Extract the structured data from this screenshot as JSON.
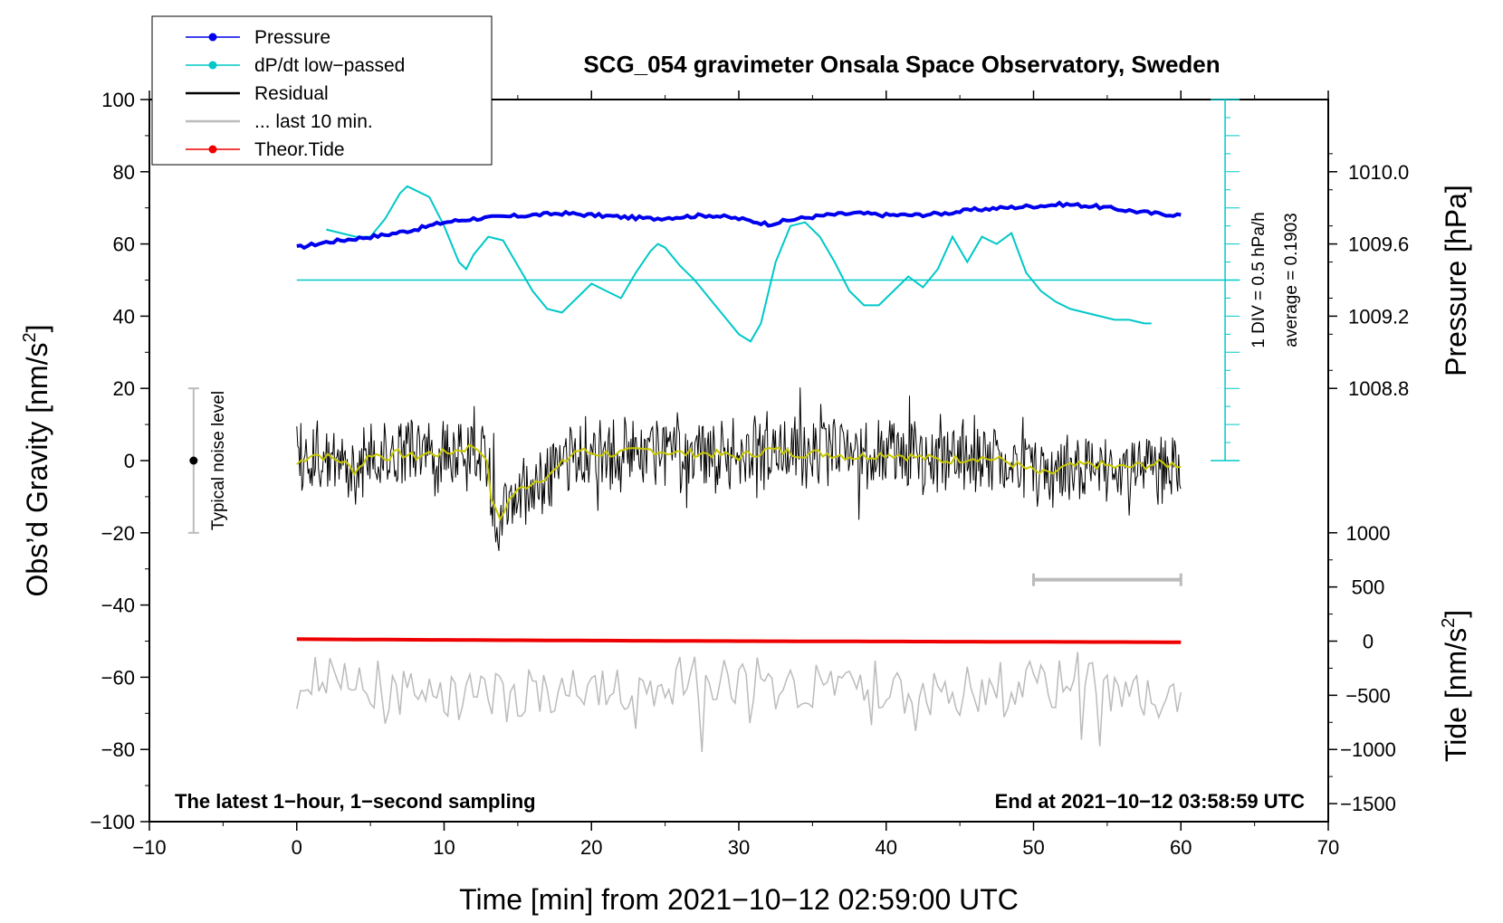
{
  "chart_data": {
    "type": "line",
    "title": "SCG_054 gravimeter Onsala Space Observatory, Sweden",
    "xlabel": "Time [min] from 2021−10−12 02:59:00 UTC",
    "ylabel_left": "Obs’d Gravity [nm/s²]",
    "ylabel_left_main": "Obs’d Gravity [nm/s",
    "ylabel_left_sup": "2",
    "ylabel_left_close": "]",
    "ylabel_right_pressure": "Pressure [hPa]",
    "ylabel_right_tide_main": "Tide [nm/s",
    "ylabel_right_tide_sup": "2",
    "ylabel_right_tide_close": "]",
    "xlim": [
      -10,
      70
    ],
    "ylim": [
      -100,
      100
    ],
    "x_ticks": [
      "−10",
      "0",
      "10",
      "20",
      "30",
      "40",
      "50",
      "60",
      "70"
    ],
    "x_tick_values": [
      -10,
      0,
      10,
      20,
      30,
      40,
      50,
      60,
      70
    ],
    "y_ticks": [
      "−100",
      "−80",
      "−60",
      "−40",
      "−20",
      "0",
      "20",
      "40",
      "60",
      "80",
      "100"
    ],
    "y_tick_values": [
      -100,
      -80,
      -60,
      -40,
      -20,
      0,
      20,
      40,
      60,
      80,
      100
    ],
    "pressure_ticks": [
      "1010.0",
      "1009.6",
      "1009.2",
      "1008.8"
    ],
    "pressure_tick_values": [
      1010.0,
      1009.6,
      1009.2,
      1008.8
    ],
    "pressure_axis_ref": {
      "hpa_at_y80": 1010.0,
      "hpa_per_gravity_unit": 0.02
    },
    "tide_ticks": [
      "1000",
      "500",
      "0",
      "−500",
      "−1000",
      "−1500"
    ],
    "tide_tick_values": [
      1000,
      500,
      0,
      -500,
      -1000,
      -1500
    ],
    "tide_axis_ref": {
      "tide_zero_at_gravity": -50,
      "tide_per_gravity_unit": 33.33
    },
    "legend": [
      {
        "label": "Pressure",
        "color": "#0000ee",
        "marker": true
      },
      {
        "label": "dP/dt low−passed",
        "color": "#00c8c8",
        "marker": true
      },
      {
        "label": "Residual",
        "color": "#000000",
        "marker": false
      },
      {
        "label": "... last 10 min.",
        "color": "#bbbbbb",
        "marker": false
      },
      {
        "label": "Theor.Tide",
        "color": "#ee0000",
        "marker": true
      }
    ],
    "legend_position": "top-left",
    "annotations": {
      "latest": "The latest 1−hour, 1−second sampling",
      "end_at": "End at 2021−10−12 03:58:59 UTC",
      "noise": "Typical noise level",
      "div": "1 DIV = 0.5 hPa/h",
      "average": "average = 0.1903"
    },
    "noise_bar": {
      "x": -7,
      "y_center": 0,
      "y_low": -20,
      "y_high": 20
    },
    "dpdt_scale": {
      "x": 63,
      "y_low": 0,
      "y_high": 100
    },
    "dpdt_zero_line": {
      "x_start": 0,
      "x_end": 64,
      "y": 50
    },
    "last10_window": {
      "x_start": 50,
      "x_end": 60,
      "y": -33
    },
    "series": [
      {
        "name": "Pressure",
        "color": "#0000ee",
        "unit": "hPa",
        "x": [
          0,
          2,
          4,
          6,
          8,
          10,
          12,
          14,
          16,
          18,
          20,
          22,
          24,
          26,
          28,
          30,
          32,
          34,
          36,
          38,
          40,
          42,
          44,
          46,
          48,
          50,
          52,
          54,
          56,
          58,
          60
        ],
        "values": [
          1009.58,
          1009.61,
          1009.63,
          1009.65,
          1009.68,
          1009.72,
          1009.74,
          1009.75,
          1009.76,
          1009.77,
          1009.76,
          1009.75,
          1009.74,
          1009.75,
          1009.76,
          1009.74,
          1009.71,
          1009.74,
          1009.76,
          1009.77,
          1009.76,
          1009.76,
          1009.77,
          1009.79,
          1009.8,
          1009.81,
          1009.82,
          1009.81,
          1009.79,
          1009.77,
          1009.76
        ]
      },
      {
        "name": "dP/dt low−passed",
        "color": "#00c8c8",
        "unit": "gravity-axis units",
        "x": [
          2,
          3,
          4,
          5,
          6,
          7,
          7.5,
          8,
          9,
          10,
          11,
          11.5,
          12,
          13,
          14,
          15,
          16,
          17,
          18,
          19,
          20,
          21,
          22,
          23,
          24,
          24.5,
          25,
          26,
          27,
          28,
          29,
          30,
          30.8,
          31.5,
          32.5,
          33.5,
          34.5,
          35.5,
          36.5,
          37.5,
          38.5,
          39.5,
          40.5,
          41.5,
          42.5,
          43.5,
          44.5,
          45.5,
          46.5,
          47.5,
          48.5,
          49.5,
          50.5,
          51.5,
          52.5,
          53.5,
          54.5,
          55.5,
          56.5,
          57.5,
          58
        ],
        "values": [
          64,
          63,
          62,
          62,
          67,
          74,
          76,
          75,
          73,
          65,
          55,
          53,
          57,
          62,
          61,
          54,
          47,
          42,
          41,
          45,
          49,
          47,
          45,
          52,
          58,
          60,
          59,
          54,
          50,
          45,
          40,
          35,
          33,
          38,
          55,
          65,
          66,
          62,
          55,
          47,
          43,
          43,
          47,
          51,
          48,
          53,
          62,
          55,
          62,
          60,
          63,
          52,
          47,
          44,
          42,
          41,
          40,
          39,
          39,
          38,
          38
        ]
      },
      {
        "name": "Residual",
        "color": "#000000",
        "unit": "nm/s²",
        "x": [
          0,
          1,
          2,
          3,
          4,
          5,
          6,
          7,
          8,
          9,
          10,
          11,
          12,
          12.8,
          13.2,
          13.7,
          14.5,
          15.5,
          16.5,
          17.5,
          18.5,
          19,
          20,
          22,
          24,
          26,
          28,
          30,
          32,
          34,
          36,
          38,
          40,
          42,
          44,
          46,
          48,
          50,
          51,
          52,
          54,
          56,
          58,
          60
        ],
        "values": [
          -1,
          2,
          1,
          0,
          -3,
          2,
          1,
          2,
          1,
          2,
          2,
          3,
          4,
          2,
          -10,
          -17,
          -10,
          -7,
          -5,
          -3,
          1,
          3,
          2,
          2,
          3,
          2,
          2,
          1,
          3,
          2,
          2,
          1,
          2,
          1,
          0,
          1,
          0,
          -3,
          -4,
          -2,
          -1,
          -2,
          -1,
          -1
        ]
      },
      {
        "name": "Theor.Tide",
        "color": "#ee0000",
        "unit": "nm/s²",
        "x": [
          0,
          15,
          30,
          45,
          60
        ],
        "values": [
          18,
          8,
          0,
          -5,
          -10
        ]
      },
      {
        "name": "... last 10 min.",
        "color": "#bbbbbb",
        "unit": "nm/s² (scaled)",
        "x": [
          0,
          60
        ],
        "values": [
          -64,
          -64
        ]
      }
    ]
  }
}
